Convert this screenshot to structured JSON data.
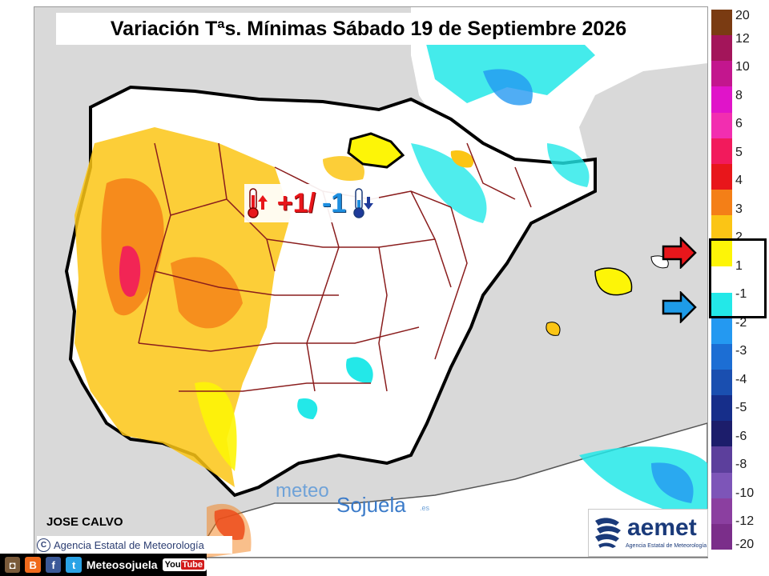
{
  "map": {
    "title": "Variación Tªs. Mínimas Sábado 19 de Septiembre 2026",
    "range_plus": "+1/",
    "range_minus": "-1",
    "author": "JOSE CALVO",
    "agency_credit": "Agencia Estatal de Meteorología",
    "aemet_name": "aemet",
    "aemet_sub": "Agencia Estatal de Meteorología",
    "watermark_part1": "meteo",
    "watermark_part2": "Sojuela",
    "watermark_part3": ".es",
    "icons": [
      "thermometer-warm-icon",
      "thermometer-cold-icon",
      "red-arrow-icon",
      "blue-arrow-icon",
      "aemet-logo-icon"
    ]
  },
  "legend": {
    "labels": [
      "20",
      "12",
      "10",
      "8",
      "6",
      "5",
      "4",
      "3",
      "2",
      "1",
      "-1",
      "-2",
      "-3",
      "-4",
      "-5",
      "-6",
      "-8",
      "-10",
      "-12",
      "-20"
    ],
    "colors": [
      "#7a3b12",
      "#a3155a",
      "#c3168e",
      "#e014c9",
      "#f22eb0",
      "#f21a5c",
      "#e8161b",
      "#f47f17",
      "#fbc515",
      "#fdf507",
      "#ffffff",
      "#23e8e8",
      "#2499f1",
      "#1c6ed4",
      "#1a4fb0",
      "#162e8a",
      "#1c1d6b",
      "#5c3f9c",
      "#7d55b8",
      "#8b3fa0",
      "#7b2e8a"
    ]
  },
  "social": {
    "handle": "Meteosojuela",
    "youtube": "You",
    "youtube_tube": "Tube"
  }
}
